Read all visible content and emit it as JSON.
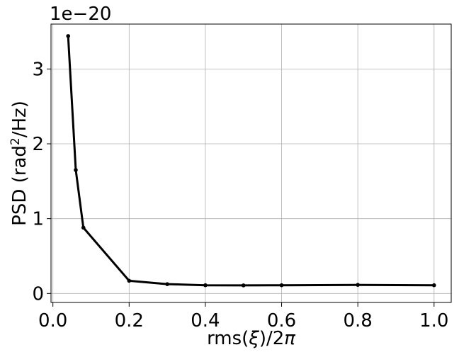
{
  "chart_data": {
    "type": "line",
    "title": "",
    "xlabel": "rms(ξ)/2π",
    "ylabel": "PSD (rad²/Hz)",
    "ylabel_parts": {
      "before": "PSD (rad",
      "sup": "2",
      "after": "/Hz)"
    },
    "xlabel_parts": {
      "before": "rms(",
      "xi": "ξ",
      "after": ")/2",
      "pi": "π"
    },
    "y_offset_text": "1e−20",
    "y_scale_exponent": -20,
    "xlim": [
      -0.005,
      1.045
    ],
    "ylim": [
      -0.12,
      3.6
    ],
    "xticks": [
      0.0,
      0.2,
      0.4,
      0.6,
      0.8,
      1.0
    ],
    "xtick_labels": [
      "0.0",
      "0.2",
      "0.4",
      "0.6",
      "0.8",
      "1.0"
    ],
    "yticks": [
      0,
      1,
      2,
      3
    ],
    "ytick_labels": [
      "0",
      "1",
      "2",
      "3"
    ],
    "grid": true,
    "series": [
      {
        "color": "#000000",
        "x": [
          0.04,
          0.06,
          0.08,
          0.2,
          0.3,
          0.4,
          0.5,
          0.6,
          0.8,
          1.0
        ],
        "y": [
          3.44,
          1.65,
          0.88,
          0.17,
          0.125,
          0.11,
          0.108,
          0.11,
          0.115,
          0.11
        ]
      }
    ]
  }
}
